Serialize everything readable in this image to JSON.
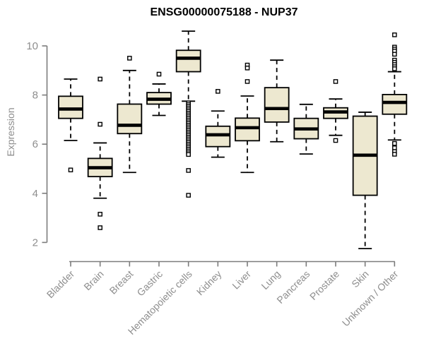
{
  "colors": {
    "background": "#FFFFFF",
    "box_fill": "#EDE8D0",
    "box_stroke": "#000000",
    "median": "#000000",
    "whisker": "#000000",
    "outlier_stroke": "#000000",
    "outlier_fill": "#FFFFFF",
    "axis": "#7C7C7C",
    "tick_label": "#8E8E8E",
    "title": "#000000"
  },
  "chart_data": {
    "type": "boxplot",
    "title": "ENSG00000075188 - NUP37",
    "xlabel": "",
    "ylabel": "Expression",
    "ylim": [
      2,
      10
    ],
    "yticks": [
      2,
      4,
      6,
      8,
      10
    ],
    "grid": false,
    "categories": [
      "Bladder",
      "Brain",
      "Breast",
      "Gastric",
      "Hematopoietic cells",
      "Kidney",
      "Liver",
      "Lung",
      "Pancreas",
      "Prostate",
      "Skin",
      "Unknown / Other"
    ],
    "boxes": [
      {
        "category": "Bladder",
        "whisker_low": 6.15,
        "q1": 7.05,
        "median": 7.43,
        "q3": 7.95,
        "whisker_high": 8.65,
        "outliers": [
          4.95
        ]
      },
      {
        "category": "Brain",
        "whisker_low": 3.8,
        "q1": 4.68,
        "median": 5.04,
        "q3": 5.42,
        "whisker_high": 6.05,
        "outliers": [
          8.65,
          6.81,
          3.15,
          2.6
        ]
      },
      {
        "category": "Breast",
        "whisker_low": 4.85,
        "q1": 6.43,
        "median": 6.77,
        "q3": 7.63,
        "whisker_high": 9.0,
        "outliers": [
          9.5
        ]
      },
      {
        "category": "Gastric",
        "whisker_low": 7.17,
        "q1": 7.63,
        "median": 7.83,
        "q3": 8.1,
        "whisker_high": 8.45,
        "outliers": [
          8.85
        ]
      },
      {
        "category": "Hematopoietic cells",
        "whisker_low": 7.75,
        "q1": 8.95,
        "median": 9.5,
        "q3": 9.82,
        "whisker_high": 10.6,
        "outliers": [
          7.68,
          7.61,
          7.54,
          7.47,
          7.4,
          7.33,
          7.26,
          7.19,
          7.12,
          7.05,
          6.98,
          6.91,
          6.84,
          6.77,
          6.7,
          6.63,
          6.56,
          6.49,
          6.42,
          6.35,
          6.28,
          6.21,
          6.14,
          6.07,
          6.0,
          5.93,
          5.86,
          5.79,
          5.72,
          5.65,
          5.58,
          4.93,
          3.92
        ]
      },
      {
        "category": "Kidney",
        "whisker_low": 5.47,
        "q1": 5.9,
        "median": 6.38,
        "q3": 6.73,
        "whisker_high": 7.35,
        "outliers": [
          8.15
        ]
      },
      {
        "category": "Liver",
        "whisker_low": 4.85,
        "q1": 6.14,
        "median": 6.67,
        "q3": 7.06,
        "whisker_high": 7.96,
        "outliers": [
          9.22,
          9.1,
          8.55
        ]
      },
      {
        "category": "Lung",
        "whisker_low": 6.1,
        "q1": 6.9,
        "median": 7.45,
        "q3": 8.3,
        "whisker_high": 9.42,
        "outliers": []
      },
      {
        "category": "Pancreas",
        "whisker_low": 5.6,
        "q1": 6.22,
        "median": 6.62,
        "q3": 7.05,
        "whisker_high": 7.62,
        "outliers": []
      },
      {
        "category": "Prostate",
        "whisker_low": 6.36,
        "q1": 7.05,
        "median": 7.31,
        "q3": 7.48,
        "whisker_high": 7.84,
        "outliers": [
          8.55,
          6.15
        ]
      },
      {
        "category": "Skin",
        "whisker_low": 1.75,
        "q1": 3.92,
        "median": 5.55,
        "q3": 7.14,
        "whisker_high": 7.3,
        "outliers": []
      },
      {
        "category": "Unknown / Other",
        "whisker_low": 6.17,
        "q1": 7.22,
        "median": 7.7,
        "q3": 8.02,
        "whisker_high": 8.95,
        "outliers": [
          10.45,
          9.95,
          9.87,
          9.79,
          9.66,
          9.42,
          9.33,
          9.24,
          9.15,
          9.07,
          6.03,
          5.85,
          5.7,
          5.59
        ]
      }
    ]
  }
}
